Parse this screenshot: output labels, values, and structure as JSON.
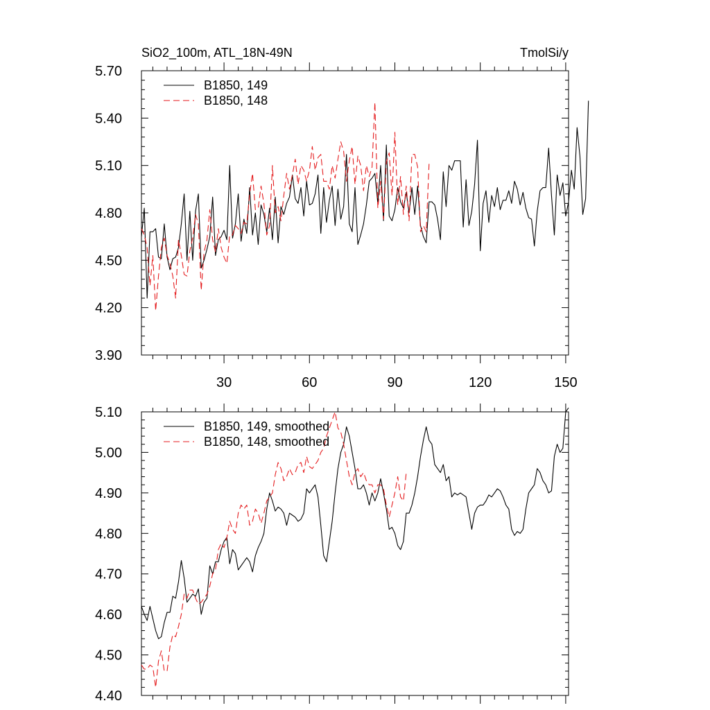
{
  "chart_data": [
    {
      "type": "line",
      "title_left": "SiO2_100m, ATL_18N-49N",
      "title_right": "TmolSi/y",
      "xlim": [
        1,
        151
      ],
      "ylim": [
        3.9,
        5.7
      ],
      "xticks": [
        30,
        60,
        90,
        120,
        150
      ],
      "xtick_labels": [
        "30",
        "60",
        "90",
        "120",
        "150"
      ],
      "yticks": [
        3.9,
        4.2,
        4.5,
        4.8,
        5.1,
        5.4,
        5.7
      ],
      "ytick_labels": [
        "3.90",
        "4.20",
        "4.50",
        "4.80",
        "5.10",
        "5.40",
        "5.70"
      ],
      "grid": false,
      "legend_position": "top-left",
      "series": [
        {
          "name": "B1850, 149",
          "color": "#000000",
          "dash": "solid",
          "x_start": 1,
          "values": [
            4.65,
            4.83,
            4.26,
            4.68,
            4.68,
            4.7,
            4.52,
            4.51,
            4.73,
            4.52,
            4.44,
            4.51,
            4.52,
            4.58,
            4.73,
            4.92,
            4.5,
            4.81,
            4.5,
            4.81,
            4.92,
            4.45,
            4.5,
            4.57,
            4.65,
            4.9,
            4.53,
            4.63,
            4.65,
            4.69,
            4.63,
            5.1,
            4.64,
            4.73,
            4.92,
            4.62,
            4.76,
            4.67,
            4.96,
            4.66,
            4.8,
            4.6,
            4.85,
            4.79,
            4.68,
            4.83,
            4.63,
            4.9,
            4.61,
            4.84,
            4.79,
            4.86,
            4.9,
            5.04,
            4.89,
            4.86,
            4.96,
            4.78,
            5.0,
            4.85,
            4.86,
            4.92,
            5.04,
            4.67,
            4.96,
            4.74,
            4.88,
            4.97,
            4.72,
            4.95,
            4.76,
            4.84,
            5.17,
            4.73,
            4.68,
            4.96,
            4.6,
            4.66,
            4.73,
            4.85,
            5.0,
            5.02,
            5.05,
            4.86,
            5.1,
            4.75,
            5.23,
            4.78,
            4.75,
            4.82,
            4.96,
            4.87,
            4.83,
            4.93,
            4.8,
            4.96,
            4.79,
            4.97,
            4.72,
            4.65,
            4.61,
            4.87,
            4.87,
            4.85,
            4.76,
            4.63,
            5.06,
            4.84,
            5.1,
            5.07,
            5.13,
            5.13,
            5.13,
            4.71,
            5.01,
            4.72,
            4.81,
            4.98,
            5.26,
            4.56,
            4.86,
            4.94,
            4.74,
            4.91,
            4.84,
            4.96,
            4.82,
            4.88,
            4.88,
            4.94,
            4.86,
            5.0,
            4.95,
            4.85,
            4.93,
            4.83,
            4.77,
            4.76,
            4.59,
            4.81,
            4.94,
            4.96,
            4.96,
            5.21,
            4.91,
            4.66,
            5.04,
            4.91,
            4.99,
            4.78,
            4.87,
            5.07,
            4.95,
            5.34,
            5.16,
            4.79,
            4.89,
            5.51
          ]
        },
        {
          "name": "B1850, 148",
          "color": "#e41a1c",
          "dash": "dashed",
          "x_start": 1,
          "values": [
            4.7,
            4.66,
            4.58,
            4.34,
            4.53,
            4.18,
            4.4,
            4.58,
            4.64,
            4.53,
            4.48,
            4.4,
            4.26,
            4.63,
            4.53,
            4.41,
            4.4,
            4.56,
            4.64,
            4.79,
            4.73,
            4.31,
            4.55,
            4.63,
            4.82,
            4.63,
            4.55,
            4.7,
            4.58,
            4.52,
            4.48,
            4.66,
            4.66,
            4.72,
            4.7,
            4.67,
            4.74,
            4.73,
            4.92,
            5.05,
            4.82,
            4.83,
            4.97,
            4.86,
            4.66,
            4.72,
            5.1,
            4.8,
            4.84,
            4.75,
            4.91,
            5.05,
            4.95,
            5.04,
            5.14,
            4.98,
            5.1,
            5.07,
            5.0,
            5.07,
            5.22,
            5.07,
            5.15,
            5.17,
            5.0,
            5.0,
            4.95,
            5.1,
            5.02,
            5.14,
            5.25,
            5.19,
            5.0,
            5.13,
            5.22,
            4.98,
            5.16,
            5.1,
            4.94,
            5.1,
            5.03,
            5.09,
            5.5,
            4.83,
            5.0,
            4.76,
            5.12,
            5.18,
            4.91,
            5.31,
            4.85,
            5.03,
            4.79,
            4.97,
            4.75,
            5.17,
            5.17,
            5.09,
            4.68,
            4.72,
            4.68,
            5.11
          ]
        }
      ]
    },
    {
      "type": "line",
      "xlim": [
        1,
        151
      ],
      "ylim": [
        4.4,
        5.1
      ],
      "xticks": [
        30,
        60,
        90,
        120,
        150
      ],
      "yticks": [
        4.4,
        4.5,
        4.6,
        4.7,
        4.8,
        4.9,
        5.0,
        5.1
      ],
      "ytick_labels": [
        "4.40",
        "4.50",
        "4.60",
        "4.70",
        "4.80",
        "4.90",
        "5.00",
        "5.10"
      ],
      "grid": false,
      "legend_position": "top-left",
      "series": [
        {
          "name": "B1850, 149, smoothed",
          "color": "#000000",
          "dash": "solid",
          "x_start": 1,
          "values": [
            4.62,
            4.6,
            4.585,
            4.62,
            4.59,
            4.56,
            4.54,
            4.545,
            4.58,
            4.605,
            4.605,
            4.645,
            4.64,
            4.68,
            4.733,
            4.69,
            4.63,
            4.64,
            4.65,
            4.645,
            4.663,
            4.6,
            4.63,
            4.64,
            4.72,
            4.7,
            4.73,
            4.73,
            4.76,
            4.78,
            4.79,
            4.725,
            4.76,
            4.75,
            4.71,
            4.72,
            4.73,
            4.74,
            4.73,
            4.705,
            4.745,
            4.765,
            4.78,
            4.8,
            4.86,
            4.9,
            4.88,
            4.855,
            4.865,
            4.86,
            4.85,
            4.82,
            4.85,
            4.845,
            4.84,
            4.83,
            4.835,
            4.85,
            4.91,
            4.9,
            4.91,
            4.92,
            4.89,
            4.82,
            4.745,
            4.73,
            4.78,
            4.83,
            4.9,
            4.96,
            5.0,
            5.02,
            5.063,
            5.04,
            5.0,
            4.96,
            4.91,
            4.91,
            4.92,
            4.9,
            4.87,
            4.9,
            4.88,
            4.9,
            4.935,
            4.9,
            4.86,
            4.81,
            4.815,
            4.8,
            4.77,
            4.76,
            4.78,
            4.85,
            4.85,
            4.87,
            4.9,
            4.94,
            4.99,
            5.03,
            5.063,
            5.03,
            5.02,
            4.97,
            4.96,
            4.95,
            4.97,
            4.93,
            4.94,
            4.89,
            4.9,
            4.895,
            4.9,
            4.895,
            4.89,
            4.85,
            4.81,
            4.85,
            4.865,
            4.87,
            4.87,
            4.88,
            4.895,
            4.89,
            4.9,
            4.91,
            4.905,
            4.89,
            4.87,
            4.86,
            4.81,
            4.795,
            4.805,
            4.8,
            4.81,
            4.86,
            4.9,
            4.91,
            4.92,
            4.96,
            4.95,
            4.93,
            4.92,
            4.9,
            4.905,
            4.99,
            5.02,
            5.0,
            5.01,
            5.1,
            5.11
          ]
        },
        {
          "name": "B1850, 148, smoothed",
          "color": "#e41a1c",
          "dash": "dashed",
          "x_start": 1,
          "values": [
            4.475,
            4.465,
            4.465,
            4.475,
            4.47,
            4.42,
            4.485,
            4.51,
            4.46,
            4.46,
            4.52,
            4.55,
            4.545,
            4.57,
            4.6,
            4.65,
            4.64,
            4.66,
            4.66,
            4.64,
            4.625,
            4.63,
            4.64,
            4.65,
            4.67,
            4.7,
            4.71,
            4.76,
            4.775,
            4.765,
            4.79,
            4.83,
            4.81,
            4.8,
            4.85,
            4.87,
            4.86,
            4.87,
            4.82,
            4.83,
            4.86,
            4.85,
            4.825,
            4.85,
            4.88,
            4.89,
            4.9,
            4.945,
            4.975,
            4.96,
            4.93,
            4.94,
            4.96,
            4.945,
            4.95,
            4.97,
            4.975,
            4.95,
            4.99,
            4.965,
            4.96,
            4.97,
            4.98,
            5.0,
            5.01,
            5.04,
            5.06,
            5.08,
            5.1,
            5.06,
            5.05,
            5.02,
            4.98,
            4.94,
            4.92,
            4.95,
            4.96,
            4.94,
            4.95,
            4.93,
            4.92,
            4.92,
            4.9,
            4.92,
            4.92,
            4.91,
            4.87,
            4.84,
            4.87,
            4.9,
            4.94,
            4.89,
            4.88,
            4.95
          ]
        }
      ]
    }
  ]
}
